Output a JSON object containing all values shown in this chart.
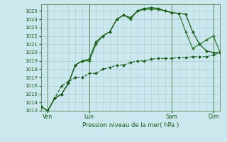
{
  "title": "Pression niveau de la mer( hPa )",
  "bg_color": "#cce8ee",
  "grid_color": "#aaccd4",
  "line_color_dark": "#1a5c1a",
  "line_color_med": "#2d7a2d",
  "ylim": [
    1013,
    1025.8
  ],
  "ytick_vals": [
    1013,
    1014,
    1015,
    1016,
    1017,
    1018,
    1019,
    1020,
    1021,
    1022,
    1023,
    1024,
    1025
  ],
  "xtick_labels": [
    "Ven",
    "Lun",
    "Sam",
    "Dim"
  ],
  "xtick_positions": [
    1,
    7,
    19,
    25
  ],
  "vline_positions": [
    1,
    7,
    19,
    25
  ],
  "series1_x": [
    0,
    1,
    2,
    3,
    4,
    5,
    6,
    7,
    8,
    9,
    10,
    11,
    12,
    13,
    14,
    15,
    16,
    17,
    18,
    19,
    20,
    21,
    22,
    23,
    24,
    25,
    26
  ],
  "series1_y": [
    1013.5,
    1013.0,
    1014.5,
    1015.0,
    1016.3,
    1018.5,
    1019.0,
    1019.2,
    1021.3,
    1022.0,
    1022.5,
    1024.0,
    1024.5,
    1024.2,
    1025.0,
    1025.3,
    1025.4,
    1025.3,
    1025.0,
    1024.8,
    1024.7,
    1024.6,
    1022.5,
    1021.0,
    1020.2,
    1020.0,
    1020.0
  ],
  "series2_x": [
    0,
    1,
    2,
    3,
    4,
    5,
    6,
    7,
    8,
    9,
    10,
    11,
    12,
    13,
    14,
    15,
    16,
    17,
    18,
    19,
    20,
    21,
    22,
    23,
    24,
    25,
    26
  ],
  "series2_y": [
    1013.5,
    1013.0,
    1014.5,
    1015.0,
    1016.3,
    1018.5,
    1019.0,
    1019.0,
    1021.0,
    1022.0,
    1022.5,
    1024.0,
    1024.5,
    1024.0,
    1025.0,
    1025.2,
    1025.2,
    1025.2,
    1025.0,
    1024.8,
    1024.7,
    1022.5,
    1020.5,
    1021.0,
    1021.5,
    1022.0,
    1020.0
  ],
  "series3_x": [
    0,
    1,
    2,
    3,
    4,
    5,
    6,
    7,
    8,
    9,
    10,
    11,
    12,
    13,
    14,
    15,
    16,
    17,
    18,
    19,
    20,
    21,
    22,
    23,
    24,
    25,
    26
  ],
  "series3_y": [
    1013.5,
    1013.0,
    1014.5,
    1016.0,
    1016.5,
    1017.0,
    1017.0,
    1017.5,
    1017.5,
    1018.0,
    1018.2,
    1018.5,
    1018.5,
    1018.8,
    1019.0,
    1019.0,
    1019.2,
    1019.3,
    1019.3,
    1019.3,
    1019.4,
    1019.4,
    1019.5,
    1019.5,
    1019.5,
    1019.7,
    1020.0
  ],
  "xlim": [
    0,
    26
  ]
}
